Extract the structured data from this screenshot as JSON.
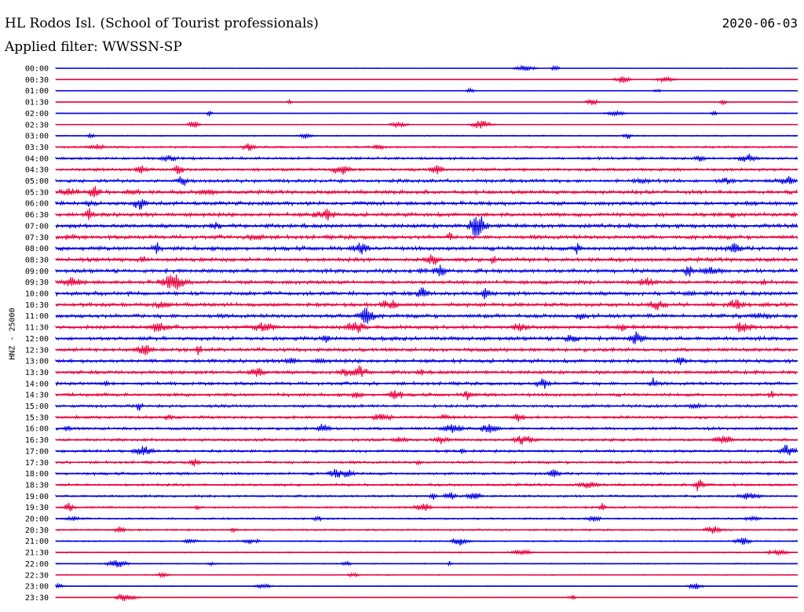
{
  "header": {
    "station": "HL Rodos Isl. (School of Tourist professionals)",
    "date": "2020-06-03",
    "filter": "Applied filter: WWSSN-SP",
    "channel_label": "HNZ - 25000"
  },
  "colors": {
    "trace_a": "#0000e0",
    "trace_b": "#e8003c",
    "background": "#ffffff"
  },
  "chart_data": {
    "type": "helicorder",
    "title": "HL Rodos Isl. (School of Tourist professionals)",
    "date": "2020-06-03",
    "ylabel": "HNZ - 25000",
    "xlabel": "",
    "row_labels": [
      "00:00",
      "00:30",
      "01:00",
      "01:30",
      "02:00",
      "02:30",
      "03:00",
      "03:30",
      "04:00",
      "04:30",
      "05:00",
      "05:30",
      "06:00",
      "06:30",
      "07:00",
      "07:30",
      "08:00",
      "08:30",
      "09:00",
      "09:30",
      "10:00",
      "10:30",
      "11:00",
      "11:30",
      "12:00",
      "12:30",
      "13:00",
      "13:30",
      "14:00",
      "14:30",
      "15:00",
      "15:30",
      "16:00",
      "16:30",
      "17:00",
      "17:30",
      "18:00",
      "18:30",
      "19:00",
      "19:30",
      "20:00",
      "20:30",
      "21:00",
      "21:30",
      "22:00",
      "22:30",
      "23:00",
      "23:30"
    ],
    "row_colors": [
      "blue",
      "red"
    ],
    "relative_noise_amplitude": [
      0.1,
      0.1,
      0.1,
      0.08,
      0.12,
      0.14,
      0.2,
      0.32,
      0.42,
      0.48,
      0.55,
      0.6,
      0.62,
      0.62,
      0.64,
      0.64,
      0.66,
      0.62,
      0.62,
      0.6,
      0.64,
      0.6,
      0.62,
      0.62,
      0.6,
      0.58,
      0.58,
      0.55,
      0.52,
      0.52,
      0.48,
      0.45,
      0.45,
      0.45,
      0.42,
      0.42,
      0.42,
      0.4,
      0.36,
      0.32,
      0.3,
      0.28,
      0.24,
      0.22,
      0.18,
      0.16,
      0.14,
      0.12
    ]
  }
}
